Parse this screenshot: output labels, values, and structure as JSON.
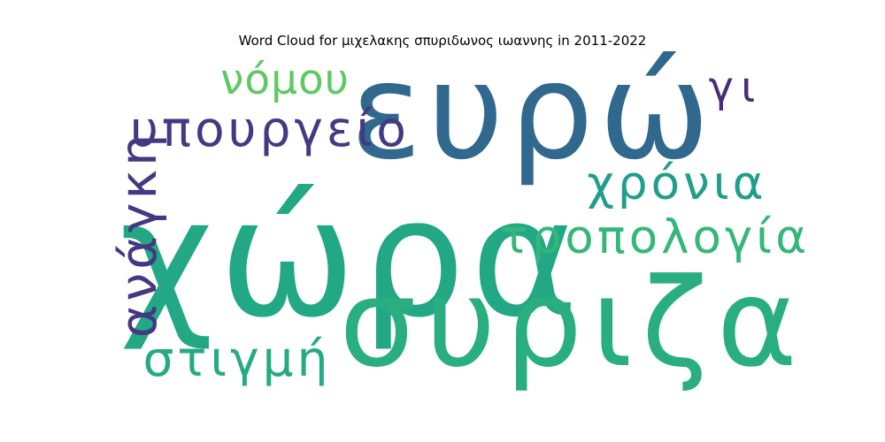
{
  "chart_data": {
    "type": "wordcloud",
    "title": "Word Cloud for μιχελακης σπυριδωνος ιωαννης in 2011-2022",
    "words": [
      {
        "text": "χώρα",
        "weight": 1.0,
        "color": "#22a884",
        "rotate": 0
      },
      {
        "text": "ευρώ",
        "weight": 0.78,
        "color": "#30688e",
        "rotate": 0
      },
      {
        "text": "συριζα",
        "weight": 0.75,
        "color": "#29af7f",
        "rotate": 0
      },
      {
        "text": "υπουργείο",
        "weight": 0.32,
        "color": "#443983",
        "rotate": 0
      },
      {
        "text": "ανάγκη",
        "weight": 0.3,
        "color": "#453781",
        "rotate": -90
      },
      {
        "text": "τροπολογία",
        "weight": 0.3,
        "color": "#35b779",
        "rotate": 0
      },
      {
        "text": "χρόνια",
        "weight": 0.3,
        "color": "#1f9e89",
        "rotate": 0
      },
      {
        "text": "στιγμή",
        "weight": 0.3,
        "color": "#25ab82",
        "rotate": 0
      },
      {
        "text": "νόμου",
        "weight": 0.27,
        "color": "#5ec962",
        "rotate": 0
      },
      {
        "text": "γι",
        "weight": 0.25,
        "color": "#472d7b",
        "rotate": 0
      }
    ]
  }
}
